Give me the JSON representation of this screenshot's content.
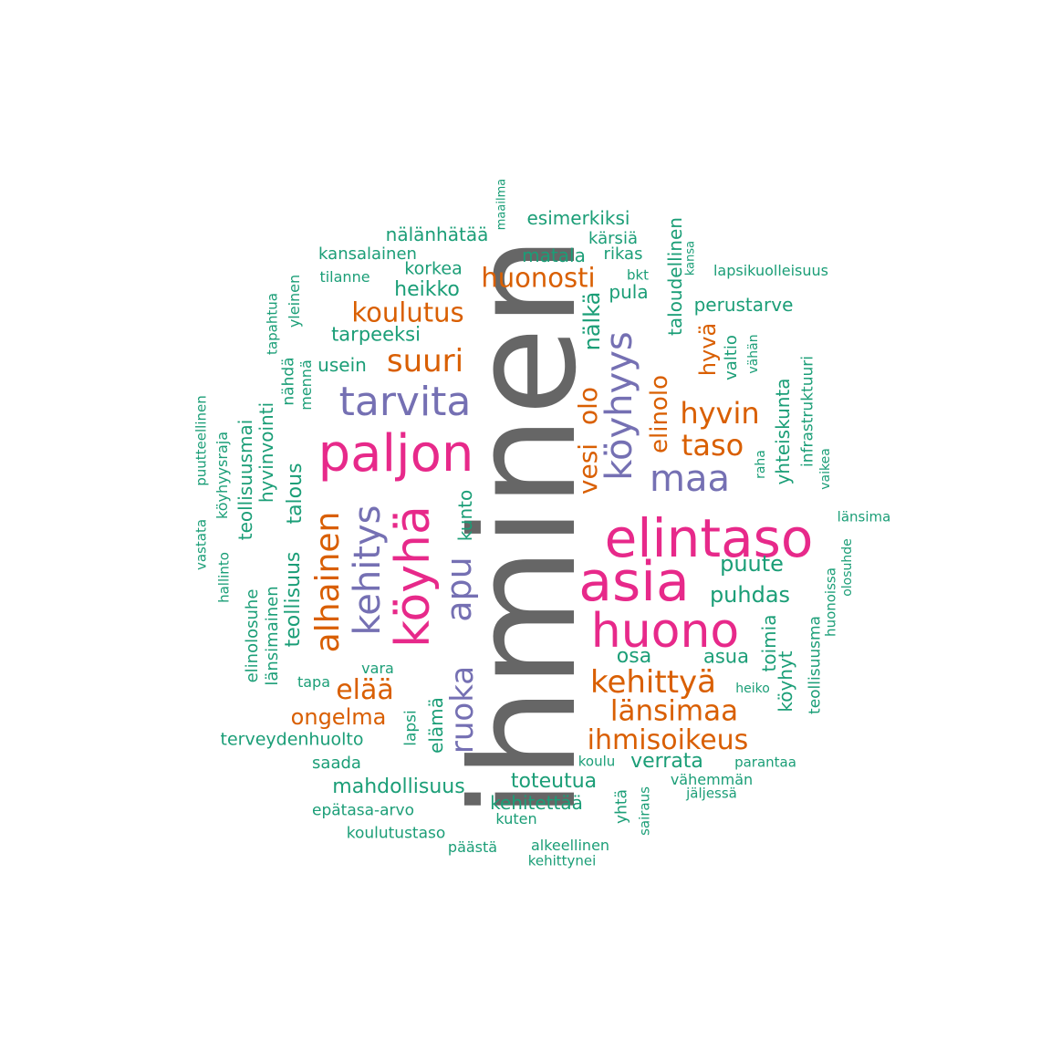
{
  "colors": {
    "green": "#1b9e77",
    "orange": "#d95f02",
    "purple": "#7570b3",
    "pink": "#e7298a",
    "gray": "#666666"
  },
  "words": {
    "ihminen": "ihminen",
    "elintaso": "elintaso",
    "asia": "asia",
    "huono": "huono",
    "paljon": "paljon",
    "koyha": "köyhä",
    "tarvita": "tarvita",
    "koyhyys": "köyhyys",
    "kehitys": "kehitys",
    "maa": "maa",
    "alhainen": "alhainen",
    "apu": "apu",
    "ruoka": "ruoka",
    "suuri": "suuri",
    "kehittya": "kehittyä",
    "lansimaa": "länsimaa",
    "ihmisoikeus": "ihmisoikeus",
    "hyvin": "hyvin",
    "taso": "taso",
    "huonosti": "huonosti",
    "koulutus": "koulutus",
    "elaa": "elää",
    "ongelma": "ongelma",
    "vesi": "vesi",
    "olo": "olo",
    "elinolo": "elinolo",
    "hyva": "hyvä",
    "nalka": "nälkä",
    "esimerkiksi": "esimerkiksi",
    "nalanhataa": "nälänhätää",
    "kansalainen": "kansalainen",
    "matala": "matala",
    "korkea": "korkea",
    "heikko": "heikko",
    "tarpeeksi": "tarpeeksi",
    "usein": "usein",
    "puute": "puute",
    "puhdas": "puhdas",
    "osa": "osa",
    "asua": "asua",
    "verrata": "verrata",
    "toteutua": "toteutua",
    "mahdollisuus": "mahdollisuus",
    "terveydenhuolto": "terveydenhuolto",
    "teollisuus": "teollisuus",
    "talous": "talous",
    "hyvinvointi": "hyvinvointi",
    "teollisuusmai": "teollisuusmai",
    "elinolosuhe": "elinolosuhe",
    "lansimainen": "länsimainen",
    "kunto": "kunto",
    "elama": "elämä",
    "lapsi": "lapsi",
    "kehitettaa": "kehitettää",
    "taloudellinen": "taloudellinen",
    "yhteiskunta": "yhteiskunta",
    "toimia": "toimia",
    "koyhyt": "köyhyt",
    "valtio": "valtio",
    "pula": "pula",
    "karsia": "kärsiä",
    "rikas": "rikas",
    "perustarve": "perustarve",
    "teollisuusma": "teollisuusma",
    "infrastruktuuri": "infrastruktuuri",
    "lapsikuolleisuus": "lapsikuolleisuus",
    "tilanne": "tilanne",
    "yleinen": "yleinen",
    "tapahtua": "tapahtua",
    "nahda": "nähdä",
    "menna": "mennä",
    "puutteellinen": "puutteellinen",
    "koyhyysraja": "köyhyysraja",
    "vastata": "vastata",
    "hallinto": "hallinto",
    "vara": "vara",
    "tapa": "tapa",
    "saada": "saada",
    "epatasa_arvo": "epätasa-arvo",
    "koulutustaso": "koulutustaso",
    "paasta": "päästä",
    "kuten": "kuten",
    "alkeellinen": "alkeellinen",
    "kehittynei": "kehittynei",
    "yhta": "yhtä",
    "sairaus": "sairaus",
    "vahemman": "vähemmän",
    "jaljessa": "jäljessä",
    "parantaa": "parantaa",
    "koulu": "koulu",
    "heiko": "heiko",
    "maailma": "maailma",
    "bkt": "bkt",
    "kansa": "kansa",
    "vahan": "vähän",
    "raha": "raha",
    "vaikea": "vaikea",
    "lansima": "länsima",
    "olosuhde": "olosuhde",
    "huonoissa": "huonoissa"
  }
}
